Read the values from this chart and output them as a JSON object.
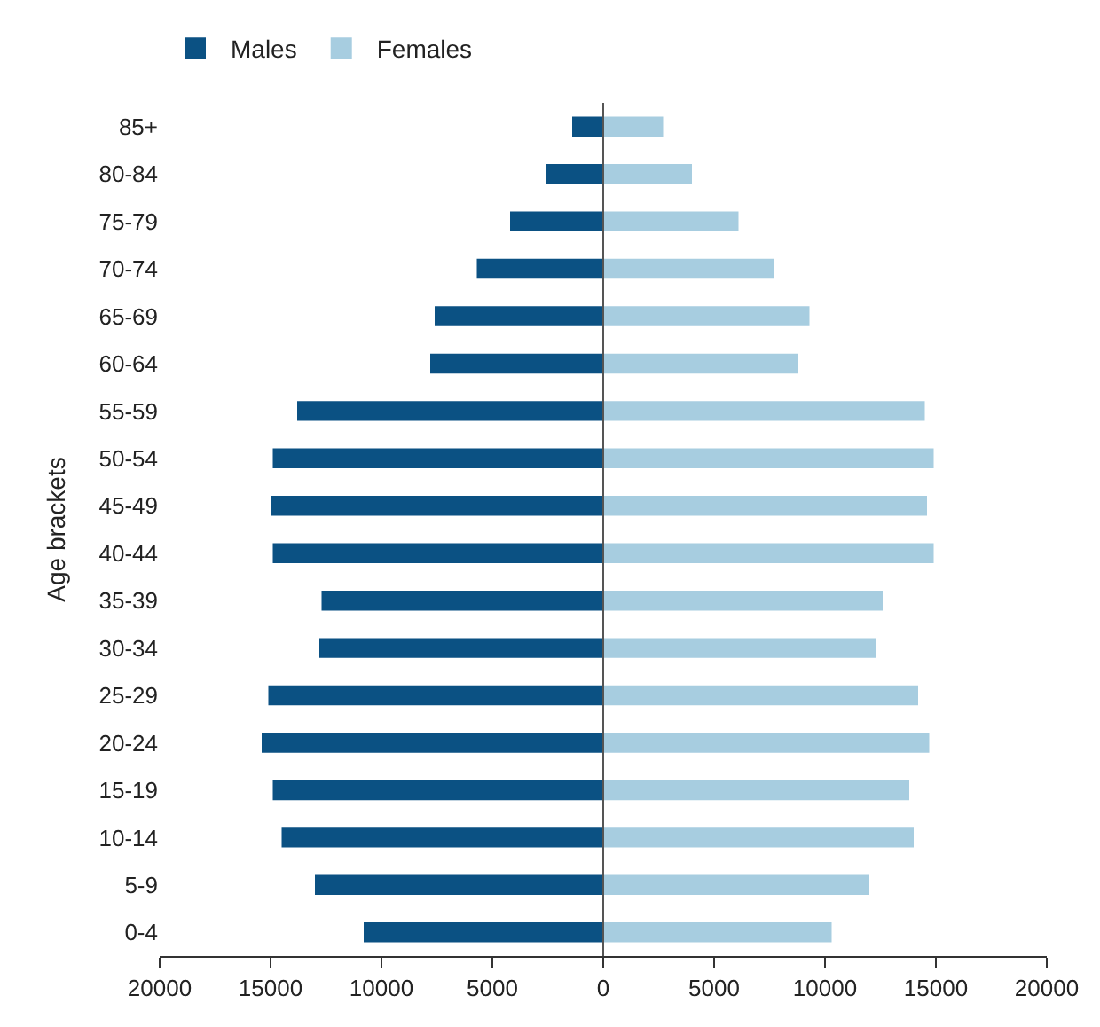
{
  "chart_data": {
    "type": "bar",
    "orientation": "horizontal",
    "stacked": true,
    "ylabel": "Age brackets",
    "categories": [
      "85+",
      "80-84",
      "75-79",
      "70-74",
      "65-69",
      "60-64",
      "55-59",
      "50-54",
      "45-49",
      "40-44",
      "35-39",
      "30-34",
      "25-29",
      "20-24",
      "15-19",
      "10-14",
      "5-9",
      "0-4"
    ],
    "series": [
      {
        "name": "Males",
        "color": "#0b5183",
        "values": [
          -1400,
          -2600,
          -4200,
          -5700,
          -7600,
          -7800,
          -13800,
          -14900,
          -15000,
          -14900,
          -12700,
          -12800,
          -15100,
          -15400,
          -14900,
          -14500,
          -13000,
          -10800
        ]
      },
      {
        "name": "Females",
        "color": "#a7cde0",
        "values": [
          2700,
          4000,
          6100,
          7700,
          9300,
          8800,
          14500,
          14900,
          14600,
          14900,
          12600,
          12300,
          14200,
          14700,
          13800,
          14000,
          12000,
          10300
        ]
      }
    ],
    "xlim": [
      -20000,
      20000
    ],
    "xticks": [
      {
        "value": -20000,
        "label": "20000"
      },
      {
        "value": -15000,
        "label": "15000"
      },
      {
        "value": -10000,
        "label": "10000"
      },
      {
        "value": -5000,
        "label": "5000"
      },
      0,
      5000,
      10000,
      15000,
      20000
    ],
    "ref_lines": [
      {
        "axis": "x",
        "value": 0,
        "color": "#555555"
      }
    ],
    "legend": "top left"
  }
}
